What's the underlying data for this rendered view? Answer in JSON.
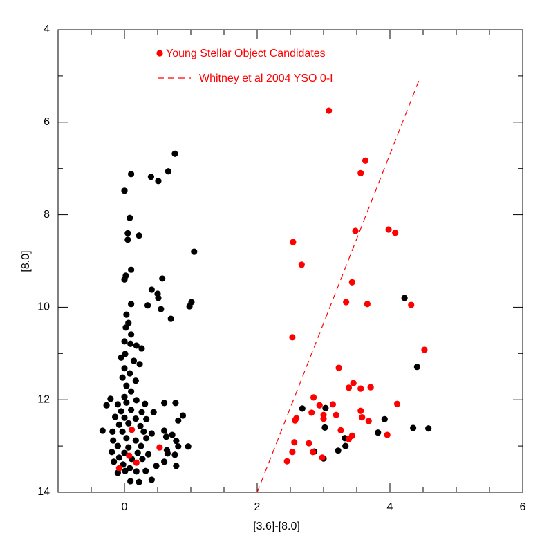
{
  "chart_data": {
    "type": "scatter",
    "xlabel": "[3.6]-[8.0]",
    "ylabel": "[8.0]",
    "xlim": [
      -1,
      6
    ],
    "ylim": [
      14,
      4
    ],
    "xticks": [
      0,
      2,
      4,
      6
    ],
    "yticks": [
      4,
      6,
      8,
      10,
      12,
      14
    ],
    "x_minor_ticks": [
      -1,
      -0.5,
      0.5,
      1,
      1.5,
      2.5,
      3,
      3.5,
      4.5,
      5,
      5.5
    ],
    "y_minor_ticks": [
      5,
      7,
      9,
      11,
      13
    ],
    "series": [
      {
        "color": "#000000",
        "x": [
          4.22,
          2.68,
          3.92,
          3.02,
          3.32,
          3.82,
          4.35,
          4.58,
          4.41,
          3.33,
          3.22,
          2.86,
          3.0,
          3.03,
          0.76,
          0.66,
          0.51,
          0.4,
          0.1,
          0.0,
          0.08,
          0.05,
          0.22,
          0.05,
          1.05,
          0.1,
          0.02,
          0.0,
          0.57,
          0.41,
          0.5,
          0.51,
          0.35,
          0.1,
          1.01,
          0.98,
          0.55,
          0.7,
          0.03,
          0.06,
          0.02,
          0.1,
          0.0,
          0.09,
          0.18,
          0.26,
          0.01,
          -0.05,
          0.14,
          0.23,
          0.0,
          0.08,
          -0.03,
          0.17,
          0.03,
          0.1,
          0.0,
          -0.21,
          -0.27,
          -0.1,
          0.03,
          0.18,
          0.31,
          0.6,
          0.77,
          -0.05,
          0.1,
          0.26,
          0.44,
          0.88,
          0.81,
          -0.14,
          0.0,
          0.17,
          0.33,
          -0.08,
          0.06,
          0.24,
          -0.33,
          -0.18,
          -0.03,
          0.29,
          0.41,
          0.6,
          0.72,
          -0.17,
          0.03,
          0.17,
          0.33,
          0.63,
          0.78,
          -0.1,
          0.06,
          0.25,
          0.81,
          0.96,
          -0.19,
          0.0,
          0.2,
          0.36,
          0.65,
          0.76,
          -0.08,
          0.11,
          0.27,
          -0.16,
          -0.02,
          0.08,
          -0.1,
          0.01,
          0.18,
          0.32,
          0.41,
          0.22,
          0.09,
          0.6,
          0.78,
          0.48,
          0.64
        ],
        "y": [
          9.8,
          12.19,
          12.42,
          12.6,
          12.83,
          12.71,
          12.61,
          12.62,
          11.29,
          13.0,
          13.1,
          13.12,
          13.27,
          12.18,
          6.68,
          7.06,
          7.27,
          7.18,
          7.12,
          7.48,
          8.07,
          8.4,
          8.45,
          8.54,
          8.8,
          9.19,
          9.32,
          9.4,
          9.38,
          9.62,
          9.71,
          9.8,
          9.96,
          9.93,
          9.89,
          9.98,
          10.04,
          10.25,
          10.16,
          10.34,
          10.44,
          10.59,
          10.74,
          10.79,
          10.83,
          10.89,
          11.01,
          11.09,
          11.16,
          11.23,
          11.32,
          11.43,
          11.52,
          11.59,
          11.7,
          11.82,
          11.94,
          11.98,
          12.12,
          12.1,
          12.06,
          12.01,
          12.09,
          12.07,
          12.07,
          12.25,
          12.22,
          12.27,
          12.27,
          12.34,
          12.45,
          12.37,
          12.39,
          12.41,
          12.42,
          12.54,
          12.51,
          12.57,
          12.67,
          12.69,
          12.69,
          12.69,
          12.73,
          12.67,
          12.76,
          12.88,
          12.83,
          12.88,
          12.83,
          12.8,
          12.89,
          13.0,
          13.03,
          13.0,
          13.01,
          13.01,
          13.13,
          13.15,
          13.15,
          13.18,
          13.16,
          13.19,
          13.25,
          13.28,
          13.28,
          13.34,
          13.4,
          13.48,
          13.58,
          13.54,
          13.55,
          13.54,
          13.73,
          13.78,
          13.76,
          13.34,
          13.43,
          13.43,
          13.09
        ]
      },
      {
        "name": "Young Stellar Object Candidates",
        "color": "#ff0000",
        "x": [
          3.08,
          3.63,
          3.56,
          3.48,
          3.98,
          4.08,
          2.54,
          2.67,
          3.43,
          3.34,
          3.66,
          4.32,
          2.53,
          4.52,
          3.23,
          3.45,
          3.38,
          3.56,
          3.71,
          4.11,
          2.85,
          2.94,
          3.14,
          2.59,
          2.57,
          2.82,
          3.0,
          3.0,
          3.19,
          3.56,
          3.58,
          3.68,
          3.26,
          3.38,
          3.43,
          3.96,
          2.56,
          2.78,
          2.53,
          2.84,
          2.98,
          2.45,
          0.11,
          0.53,
          0.07,
          -0.08,
          0.18
        ],
        "y": [
          5.75,
          6.83,
          7.1,
          8.35,
          8.32,
          8.39,
          8.59,
          9.08,
          9.46,
          9.89,
          9.93,
          9.95,
          10.65,
          10.92,
          11.31,
          11.64,
          11.74,
          11.76,
          11.73,
          12.09,
          11.95,
          12.12,
          12.1,
          12.4,
          12.45,
          12.28,
          12.41,
          12.33,
          12.33,
          12.24,
          12.38,
          12.46,
          12.66,
          12.85,
          12.78,
          12.76,
          12.92,
          12.94,
          13.13,
          13.13,
          13.25,
          13.33,
          12.65,
          13.03,
          13.21,
          13.48,
          13.36
        ]
      },
      {
        "name": "Whitney et al 2004 YSO 0-I",
        "color": "#ff0000",
        "type": "line",
        "dashed": true,
        "x": [
          2.0,
          4.45
        ],
        "y": [
          14,
          5.05
        ]
      }
    ]
  }
}
